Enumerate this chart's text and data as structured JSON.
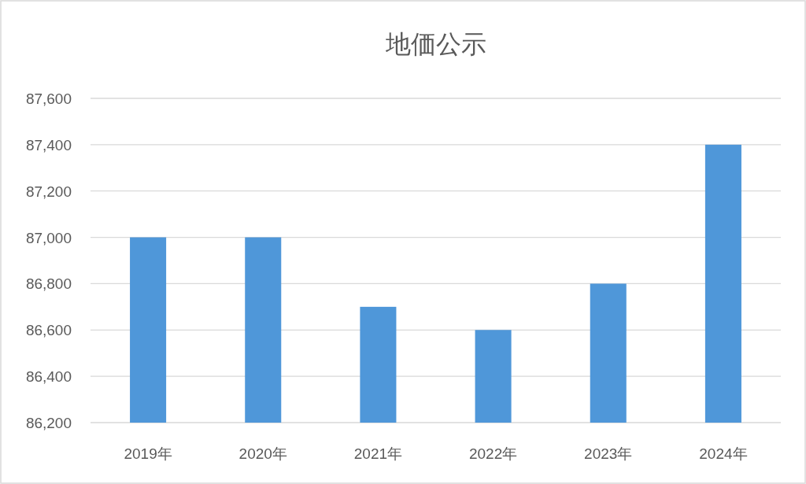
{
  "chart_data": {
    "type": "bar",
    "title": "地価公示",
    "categories": [
      "2019年",
      "2020年",
      "2021年",
      "2022年",
      "2023年",
      "2024年"
    ],
    "series": [
      {
        "color": "#4f97d9",
        "values": [
          87000,
          87000,
          86700,
          86600,
          86800,
          87400
        ]
      }
    ],
    "ylim": [
      86200,
      87600
    ],
    "yticks": [
      {
        "value": 86200,
        "label": "86,200"
      },
      {
        "value": 86400,
        "label": "86,400"
      },
      {
        "value": 86600,
        "label": "86,600"
      },
      {
        "value": 86800,
        "label": "86,800"
      },
      {
        "value": 87000,
        "label": "87,000"
      },
      {
        "value": 87200,
        "label": "87,200"
      },
      {
        "value": 87400,
        "label": "87,400"
      },
      {
        "value": 87600,
        "label": "87,600"
      }
    ],
    "grid": "y"
  }
}
